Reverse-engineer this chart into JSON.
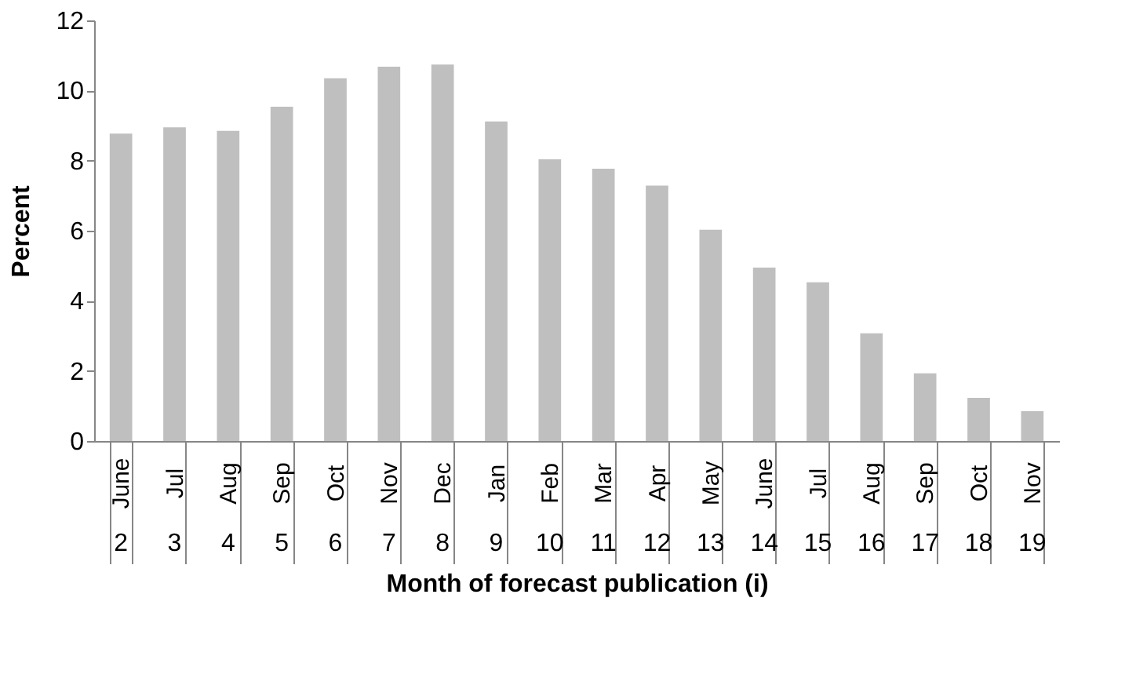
{
  "chart_data": {
    "type": "bar",
    "xlabel": "Month of forecast publication (i)",
    "ylabel": "Percent",
    "categories": [
      "June\n2",
      "Jul\n3",
      "Aug\n4",
      "Sep\n5",
      "Oct\n6",
      "Nov\n7",
      "Dec\n8",
      "Jan\n9",
      "Feb\n10",
      "Mar\n11",
      "Apr\n12",
      "May\n13",
      "June\n14",
      "Jul\n15",
      "Aug\n16",
      "Sep\n17",
      "Oct\n18",
      "Nov\n19"
    ],
    "values": [
      8.77,
      8.95,
      8.85,
      9.54,
      10.35,
      10.68,
      10.74,
      9.12,
      8.04,
      7.77,
      7.29,
      6.03,
      4.95,
      4.53,
      3.07,
      1.93,
      1.23,
      0.85
    ],
    "color": "#bfbfbf",
    "ylim": [
      0,
      12
    ],
    "yticks": [
      0,
      2,
      4,
      6,
      8,
      10,
      12
    ],
    "grid": false
  }
}
